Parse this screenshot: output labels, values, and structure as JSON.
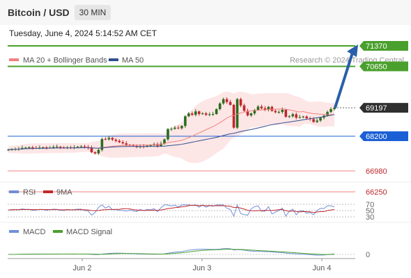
{
  "header": {
    "title": "Bitcoin / USD",
    "timeframe": "30 MIN",
    "datetime": "Tuesday, June 4, 2024 5:14:52 AM CET"
  },
  "legend": {
    "ma20": "MA 20 + Bollinger Bands",
    "ma50": "MA 50",
    "credit": "Research © 2024 Trading Central",
    "rsi": "RSI",
    "rsi_ma": "9MA",
    "macd": "MACD",
    "macd_signal": "MACD Signal"
  },
  "colors": {
    "up_candle": "#2c6c1e",
    "down_candle": "#c0282d",
    "ma20": "#f08080",
    "ma50": "#2f4f8f",
    "bollinger_fill": "#fde0e0",
    "resistance": "#4aa02c",
    "support": "#1a5fd6",
    "pivot": "#2f2f2f",
    "target_arrow": "#2a5ea8",
    "rsi": "#6f8fd8",
    "rsi_ma": "#c0282d",
    "macd": "#6f8fd8",
    "macd_signal": "#4aa02c"
  },
  "chart_data": {
    "type": "candlestick",
    "instrument": "Bitcoin / USD",
    "interval": "30 MIN",
    "x_ticks": [
      "Jun 2",
      "Jun 3",
      "Jun 4"
    ],
    "levels": [
      {
        "kind": "resistance",
        "value": 71370,
        "label": "71370"
      },
      {
        "kind": "resistance",
        "value": 70650,
        "label": "70650"
      },
      {
        "kind": "pivot",
        "value": 69197,
        "label": "69197"
      },
      {
        "kind": "support",
        "value": 68200,
        "label": "68200"
      },
      {
        "kind": "support",
        "value": 66980,
        "label": "66980"
      },
      {
        "kind": "support",
        "value": 66250,
        "label": "66250"
      }
    ],
    "price_range": [
      66000,
      71500
    ],
    "close_path": [
      67730,
      67740,
      67750,
      67760,
      67790,
      67800,
      67810,
      67790,
      67785,
      67800,
      67810,
      67795,
      67800,
      67820,
      67830,
      67810,
      67790,
      67805,
      67800,
      67810,
      67830,
      67845,
      67820,
      67790,
      67640,
      67600,
      67720,
      68100,
      68090,
      68140,
      68080,
      68040,
      67990,
      67950,
      67900,
      67890,
      67860,
      67820,
      67850,
      67840,
      67870,
      67880,
      67920,
      67860,
      67940,
      68090,
      68450,
      68460,
      68500,
      68480,
      68560,
      68900,
      69000,
      68950,
      69070,
      68980,
      69000,
      68950,
      68970,
      68980,
      69150,
      69350,
      69500,
      69400,
      69300,
      68500,
      69500,
      69280,
      69090,
      68930,
      69000,
      69120,
      69240,
      69180,
      69130,
      69230,
      69090,
      69040,
      69050,
      69130,
      68880,
      68900,
      68970,
      68850,
      68870,
      68890,
      68830,
      68800,
      68700,
      68750,
      68850,
      68920,
      69050,
      69150,
      69197
    ],
    "rsi": {
      "levels": [
        70,
        50,
        30
      ],
      "level_labels": [
        "70",
        "50",
        "30"
      ]
    },
    "macd": {
      "zero_label": "0"
    }
  }
}
